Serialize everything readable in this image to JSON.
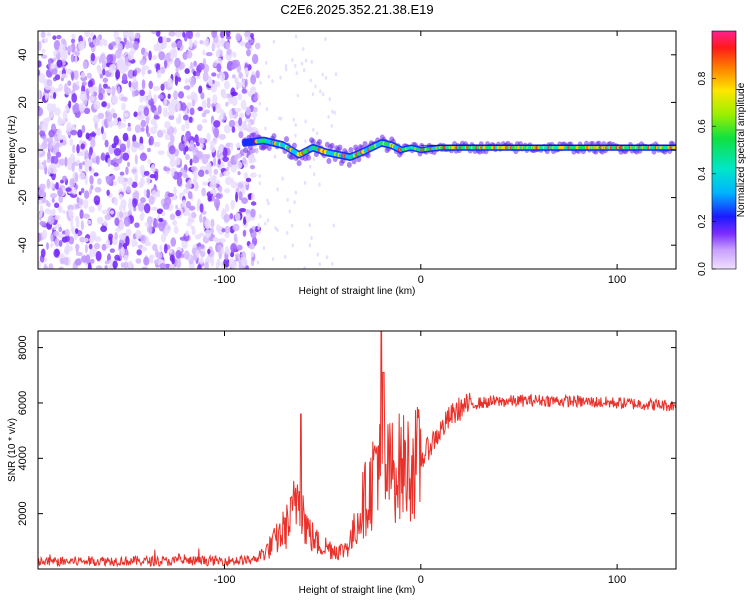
{
  "title": "C2E6.2025.352.21.38.E19",
  "chart_data": [
    {
      "type": "heatmap",
      "name": "spectrogram",
      "xlabel": "Height of straight line (km)",
      "ylabel": "Frequency (Hz)",
      "xlim": [
        -195,
        130
      ],
      "ylim": [
        -50,
        50
      ],
      "xticks": [
        -100,
        0,
        100
      ],
      "xtick_labels": [
        "-100",
        "0",
        "100"
      ],
      "yticks": [
        -40,
        -20,
        0,
        20,
        40
      ],
      "ytick_labels": [
        "-40",
        "-20",
        "0",
        "20",
        "40"
      ],
      "noise_region_km": [
        -195,
        -83
      ],
      "ridge": {
        "description_values": "dominant frequency vs height",
        "x": [
          -90,
          -80,
          -70,
          -62,
          -55,
          -48,
          -42,
          -36,
          -30,
          -25,
          -20,
          -15,
          -10,
          -5,
          0,
          10,
          30,
          60,
          90,
          130
        ],
        "y": [
          3,
          4,
          2,
          -2,
          1,
          -1,
          -2,
          -3,
          -1,
          1,
          3,
          2,
          0,
          1,
          0,
          1,
          1,
          1,
          1,
          1
        ]
      },
      "colorbar": {
        "label": "Normalized spectral amplitude",
        "range": [
          0,
          1
        ],
        "ticks": [
          0.0,
          0.2,
          0.4,
          0.6,
          0.8
        ],
        "tick_labels": [
          "0.0",
          "0.2",
          "0.4",
          "0.6",
          "0.8"
        ]
      }
    },
    {
      "type": "line",
      "name": "snr",
      "xlabel": "Height of straight line (km)",
      "ylabel": "SNR (10 * v/v)",
      "xlim": [
        -195,
        130
      ],
      "ylim": [
        0,
        8600
      ],
      "xticks": [
        -100,
        0,
        100
      ],
      "xtick_labels": [
        "-100",
        "0",
        "100"
      ],
      "yticks": [
        2000,
        4000,
        6000,
        8000
      ],
      "ytick_labels": [
        "2000",
        "4000",
        "6000",
        "8000"
      ],
      "color": "#e8312a",
      "series": [
        {
          "name": "SNR envelope",
          "x": [
            -195,
            -160,
            -130,
            -100,
            -85,
            -78,
            -72,
            -66,
            -62,
            -59,
            -56,
            -52,
            -48,
            -44,
            -40,
            -35,
            -30,
            -25,
            -22,
            -20,
            -17,
            -14,
            -10,
            -6,
            -3,
            0,
            5,
            10,
            15,
            20,
            25,
            30,
            40,
            60,
            80,
            100,
            115,
            130
          ],
          "y": [
            250,
            300,
            280,
            300,
            320,
            700,
            1200,
            1800,
            3000,
            1700,
            1200,
            900,
            800,
            700,
            650,
            1100,
            2300,
            3000,
            4500,
            2800,
            3500,
            3600,
            3700,
            3700,
            3800,
            3900,
            4500,
            5000,
            5500,
            5800,
            5950,
            6000,
            6050,
            6100,
            6050,
            6000,
            5950,
            5900
          ]
        }
      ],
      "spikes": {
        "x": [
          -61,
          -20,
          -19
        ],
        "y": [
          5600,
          8600,
          7100
        ]
      }
    }
  ]
}
